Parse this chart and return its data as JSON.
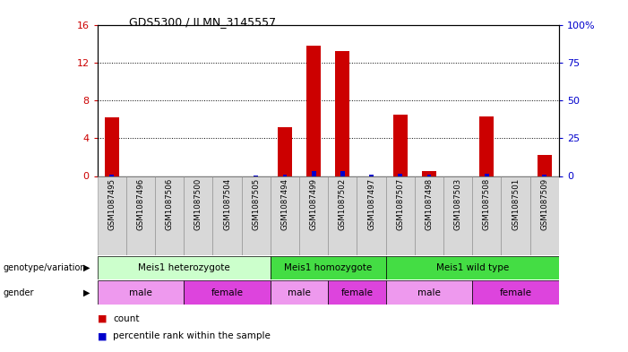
{
  "title": "GDS5300 / ILMN_3145557",
  "samples": [
    "GSM1087495",
    "GSM1087496",
    "GSM1087506",
    "GSM1087500",
    "GSM1087504",
    "GSM1087505",
    "GSM1087494",
    "GSM1087499",
    "GSM1087502",
    "GSM1087497",
    "GSM1087507",
    "GSM1087498",
    "GSM1087503",
    "GSM1087508",
    "GSM1087501",
    "GSM1087509"
  ],
  "count_values": [
    6.2,
    0,
    0,
    0,
    0,
    0,
    5.2,
    13.8,
    13.2,
    0,
    6.5,
    0.5,
    0,
    6.3,
    0,
    2.2
  ],
  "percentile_values": [
    1.1,
    0,
    0,
    0,
    0,
    0.15,
    0.6,
    3.5,
    3.3,
    0.6,
    1.5,
    0.7,
    0,
    1.2,
    0,
    0.7
  ],
  "ylim_left": [
    0,
    16
  ],
  "ylim_right": [
    0,
    100
  ],
  "yticks_left": [
    0,
    4,
    8,
    12,
    16
  ],
  "yticks_right": [
    0,
    25,
    50,
    75,
    100
  ],
  "bar_color": "#cc0000",
  "percentile_color": "#0000cc",
  "bar_width": 0.5,
  "bg_color": "#ffffff",
  "plot_bg_color": "#ffffff",
  "grid_color": "#000000",
  "genotype_groups": [
    {
      "label": "Meis1 heterozygote",
      "start": 0,
      "end": 6,
      "color": "#ccffcc"
    },
    {
      "label": "Meis1 homozygote",
      "start": 6,
      "end": 10,
      "color": "#44dd44"
    },
    {
      "label": "Meis1 wild type",
      "start": 10,
      "end": 16,
      "color": "#44dd44"
    }
  ],
  "gender_groups": [
    {
      "label": "male",
      "start": 0,
      "end": 3,
      "color": "#ee99ee"
    },
    {
      "label": "female",
      "start": 3,
      "end": 6,
      "color": "#dd44dd"
    },
    {
      "label": "male",
      "start": 6,
      "end": 8,
      "color": "#ee99ee"
    },
    {
      "label": "female",
      "start": 8,
      "end": 10,
      "color": "#dd44dd"
    },
    {
      "label": "male",
      "start": 10,
      "end": 13,
      "color": "#ee99ee"
    },
    {
      "label": "female",
      "start": 13,
      "end": 16,
      "color": "#dd44dd"
    }
  ],
  "label_genotype": "genotype/variation",
  "label_gender": "gender",
  "legend_count": "count",
  "legend_percentile": "percentile rank within the sample",
  "tick_color_left": "#cc0000",
  "tick_color_right": "#0000cc"
}
